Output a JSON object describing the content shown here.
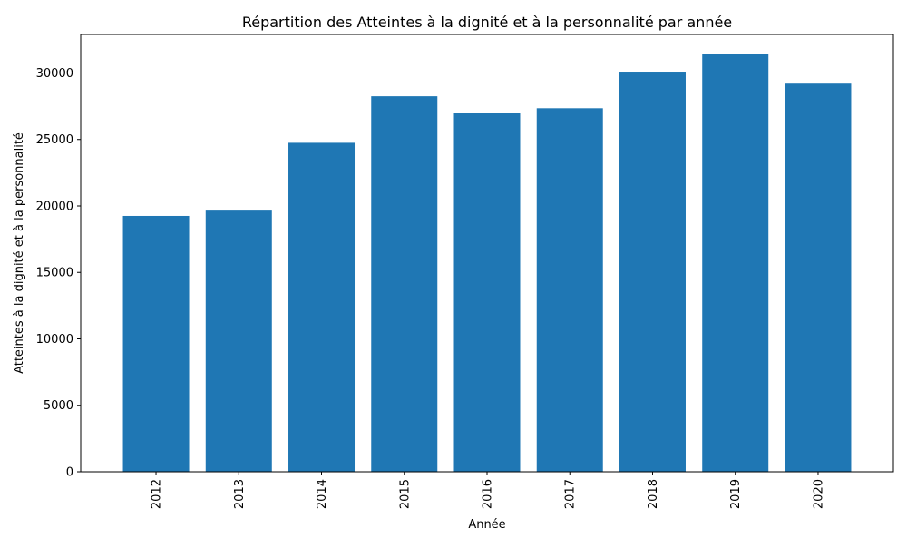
{
  "chart_data": {
    "type": "bar",
    "title": "Répartition des Atteintes à la dignité et à la  personnalité par année",
    "xlabel": "Année",
    "ylabel": "Atteintes à la dignité et à la  personnalité",
    "categories": [
      "2012",
      "2013",
      "2014",
      "2015",
      "2016",
      "2017",
      "2018",
      "2019",
      "2020"
    ],
    "values": [
      19250,
      19650,
      24750,
      28250,
      27000,
      27350,
      30100,
      31400,
      29200
    ],
    "ylim": [
      0,
      32900
    ],
    "yticks": [
      0,
      5000,
      10000,
      15000,
      20000,
      25000,
      30000
    ],
    "bar_color": "#1f77b4",
    "grid": false,
    "x_tick_rotation": 90
  }
}
